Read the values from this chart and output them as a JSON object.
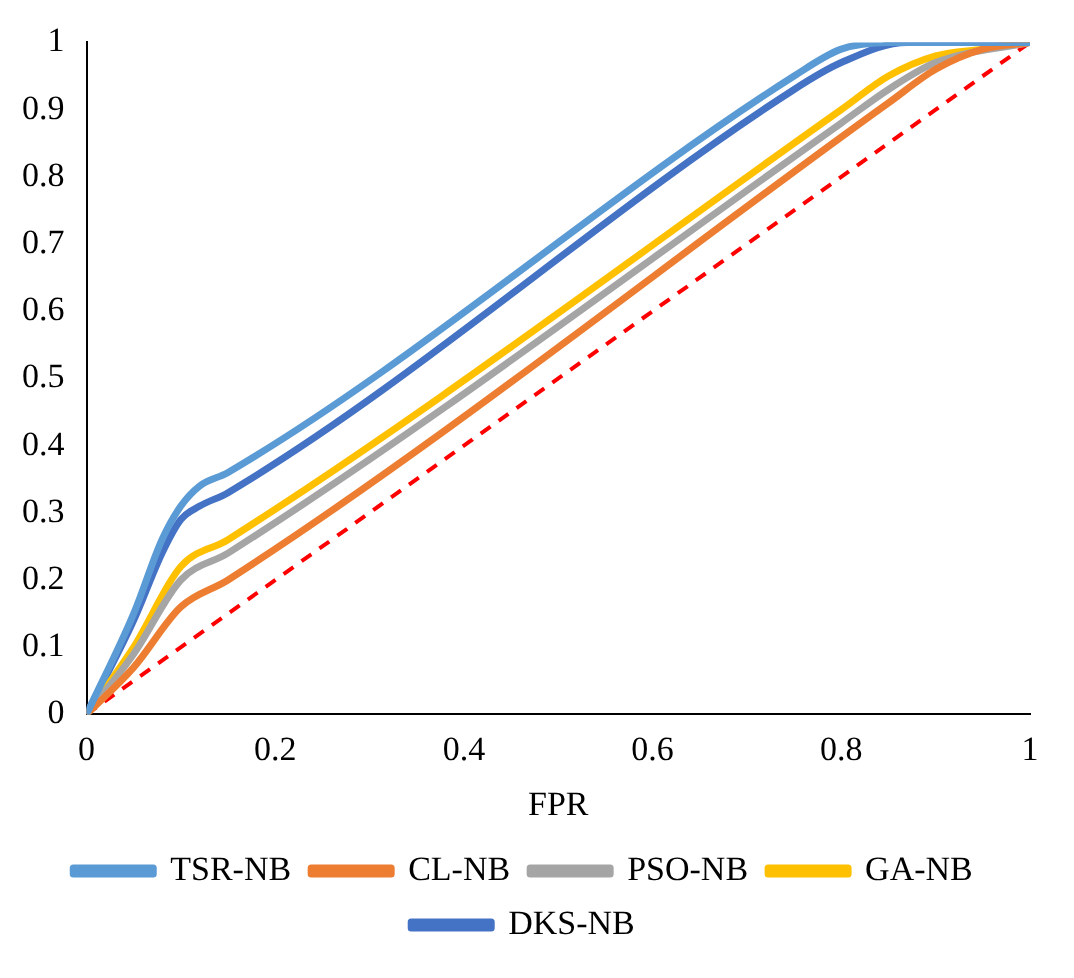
{
  "chart_data": {
    "type": "line",
    "xlabel": "FPR",
    "xlim": [
      0,
      1
    ],
    "ylim": [
      0,
      1
    ],
    "xticks": [
      0,
      0.2,
      0.4,
      0.6,
      0.8,
      1
    ],
    "yticks": [
      0,
      0.1,
      0.2,
      0.3,
      0.4,
      0.5,
      0.6,
      0.7,
      0.8,
      0.9,
      1
    ],
    "grid": false,
    "legend": "bottom",
    "marker": "none",
    "series": [
      {
        "name": "TSR-NB",
        "color": "#5b9bd5",
        "x": [
          0,
          0.05,
          0.08,
          0.1,
          0.12,
          0.15,
          0.75,
          0.8,
          0.85,
          1
        ],
        "values": [
          0,
          0.15,
          0.26,
          0.31,
          0.34,
          0.36,
          0.95,
          0.99,
          1,
          1
        ]
      },
      {
        "name": "CL-NB",
        "color": "#ed7d31",
        "x": [
          0,
          0.05,
          0.1,
          0.15,
          0.85,
          0.9,
          0.95,
          1
        ],
        "values": [
          0,
          0.07,
          0.16,
          0.2,
          0.91,
          0.96,
          0.99,
          1
        ]
      },
      {
        "name": "PSO-NB",
        "color": "#a5a5a5",
        "x": [
          0,
          0.05,
          0.1,
          0.15,
          0.8,
          0.85,
          0.9,
          1
        ],
        "values": [
          0,
          0.09,
          0.2,
          0.24,
          0.88,
          0.93,
          0.97,
          1
        ]
      },
      {
        "name": "GA-NB",
        "color": "#ffc000",
        "x": [
          0,
          0.05,
          0.1,
          0.15,
          0.8,
          0.85,
          0.9,
          0.95,
          1
        ],
        "values": [
          0,
          0.1,
          0.22,
          0.26,
          0.9,
          0.95,
          0.98,
          0.99,
          1
        ]
      },
      {
        "name": "DKS-NB",
        "color": "#4472c4",
        "x": [
          0,
          0.05,
          0.08,
          0.1,
          0.12,
          0.15,
          0.75,
          0.8,
          0.87,
          1
        ],
        "values": [
          0,
          0.14,
          0.24,
          0.29,
          0.31,
          0.33,
          0.93,
          0.97,
          1,
          1
        ]
      },
      {
        "color": "#ff0000",
        "line_style": "dashed",
        "x": [
          0,
          1
        ],
        "values": [
          0,
          1
        ]
      }
    ]
  }
}
